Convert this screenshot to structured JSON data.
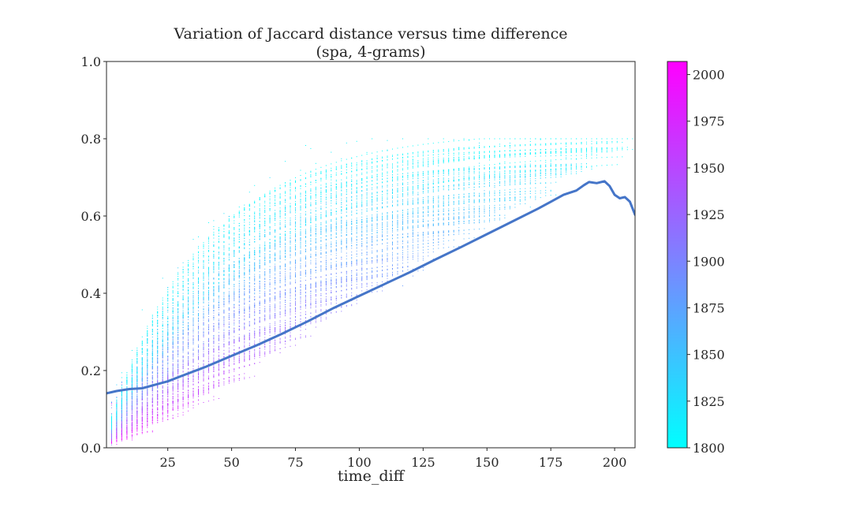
{
  "chart_data": {
    "type": "scatter",
    "title_line1": "Variation of Jaccard distance versus time difference",
    "title_line2": "(spa, 4-grams)",
    "xlabel": "time_diff",
    "ylabel": "",
    "xlim": [
      1,
      208
    ],
    "ylim": [
      0.0,
      1.0
    ],
    "x_ticks": [
      25,
      50,
      75,
      100,
      125,
      150,
      175,
      200
    ],
    "x_tick_labels": [
      "25",
      "50",
      "75",
      "100",
      "125",
      "150",
      "175",
      "200"
    ],
    "y_ticks": [
      0.0,
      0.2,
      0.4,
      0.6,
      0.8,
      1.0
    ],
    "y_tick_labels": [
      "0.0",
      "0.2",
      "0.4",
      "0.6",
      "0.8",
      "1.0"
    ],
    "grid": false,
    "colormap": "cool",
    "colorbar": {
      "min": 1800,
      "max": 2007,
      "ticks": [
        1800,
        1825,
        1850,
        1875,
        1900,
        1925,
        1950,
        1975,
        2000
      ],
      "tick_labels": [
        "1800",
        "1825",
        "1850",
        "1875",
        "1900",
        "1925",
        "1950",
        "1975",
        "2000"
      ],
      "color_low": "#00ffff",
      "color_high": "#ff00ff"
    },
    "trend_line": {
      "color": "#4575c8",
      "x": [
        1,
        5,
        10,
        15,
        20,
        25,
        30,
        40,
        50,
        60,
        70,
        80,
        90,
        100,
        110,
        120,
        130,
        140,
        150,
        160,
        170,
        175,
        180,
        185,
        188,
        190,
        193,
        196,
        198,
        200,
        202,
        204,
        206,
        208
      ],
      "y": [
        0.141,
        0.147,
        0.152,
        0.154,
        0.163,
        0.172,
        0.185,
        0.21,
        0.238,
        0.266,
        0.296,
        0.328,
        0.362,
        0.393,
        0.424,
        0.455,
        0.488,
        0.52,
        0.553,
        0.586,
        0.619,
        0.637,
        0.655,
        0.666,
        0.68,
        0.688,
        0.685,
        0.69,
        0.678,
        0.655,
        0.646,
        0.649,
        0.637,
        0.603
      ]
    }
  }
}
